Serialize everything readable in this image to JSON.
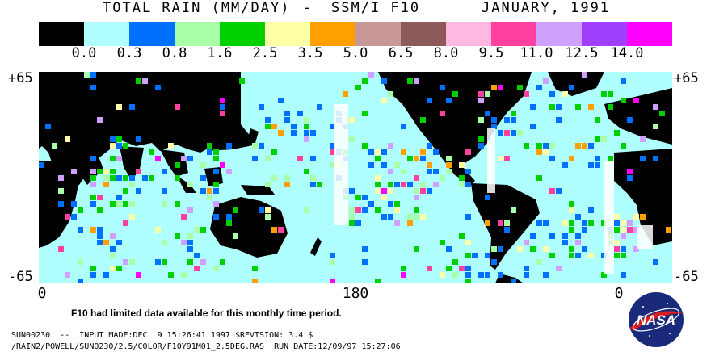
{
  "title": {
    "main": "TOTAL RAIN (MM/DAY)",
    "separator": "-",
    "instrument": "SSM/I F10",
    "period": "JANUARY, 1991"
  },
  "legend": {
    "colors": [
      "#000000",
      "#b0ffff",
      "#0070ff",
      "#a8ffa8",
      "#00d000",
      "#ffffa8",
      "#ffa000",
      "#c89898",
      "#8c5a5a",
      "#ffb8e0",
      "#ff40a0",
      "#d0a0ff",
      "#a040ff",
      "#ff00ff"
    ],
    "ticks": [
      "0.0",
      "0.3",
      "0.8",
      "1.6",
      "2.5",
      "3.5",
      "5.0",
      "6.5",
      "8.0",
      "9.5",
      "11.0",
      "12.5",
      "14.0"
    ]
  },
  "axes": {
    "lat_top_left": "+65",
    "lat_top_right": "+65",
    "lat_bottom_left": "-65",
    "lat_bottom_right": "-65",
    "lon_left": "0",
    "lon_center": "180",
    "lon_right": "0"
  },
  "note": "F10 had limited data available for this monthly time period.",
  "meta": {
    "line1": "SUN00230  --  INPUT MADE:DEC  9 15:26:41 1997 $REVISION: 3.4 $",
    "line2": "/RAIN2/POWELL/SUN0230/2.5/COLOR/F10Y91M01_2.5DEG.RAS  RUN DATE:12/09/97 15:27:06"
  },
  "logo": {
    "text": "NASA"
  }
}
